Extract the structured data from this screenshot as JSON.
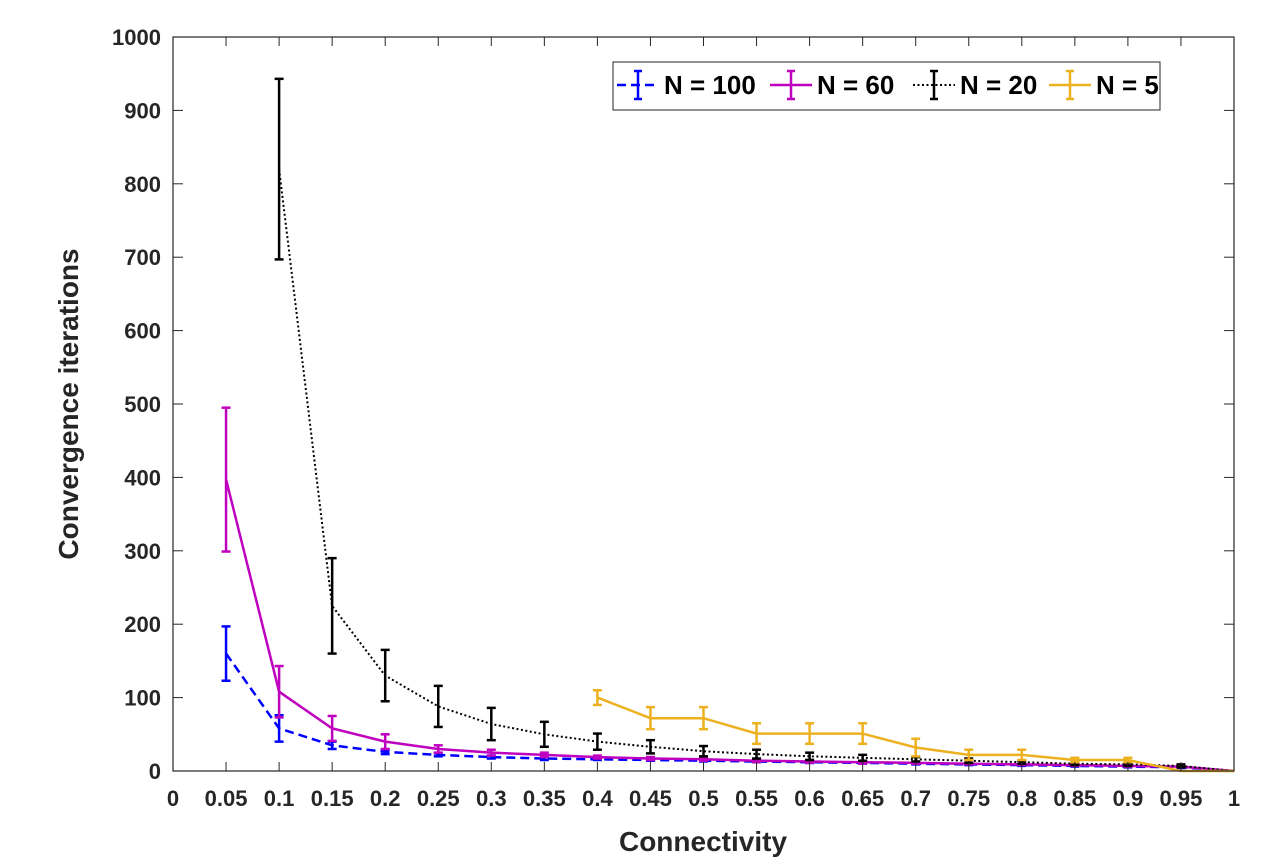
{
  "chart_data": {
    "type": "line",
    "title": "",
    "xlabel": "Connectivity",
    "ylabel": "Convergence iterations",
    "xlim": [
      0,
      1
    ],
    "ylim": [
      0,
      1000
    ],
    "x_ticks": [
      "0",
      "0.05",
      "0.1",
      "0.15",
      "0.2",
      "0.25",
      "0.3",
      "0.35",
      "0.4",
      "0.45",
      "0.5",
      "0.55",
      "0.6",
      "0.65",
      "0.7",
      "0.75",
      "0.8",
      "0.85",
      "0.9",
      "0.95",
      "1"
    ],
    "y_ticks": [
      "0",
      "100",
      "200",
      "300",
      "400",
      "500",
      "600",
      "700",
      "800",
      "900",
      "1000"
    ],
    "grid": false,
    "legend_placement": "top-right",
    "series": [
      {
        "name": "N = 100",
        "color": "#0000ff",
        "line_style": "dashed",
        "x": [
          0.05,
          0.1,
          0.15,
          0.2,
          0.25,
          0.3,
          0.35,
          0.4,
          0.45,
          0.5,
          0.55,
          0.6,
          0.65,
          0.7,
          0.75,
          0.8,
          0.85,
          0.9,
          0.95,
          1.0
        ],
        "y": [
          160,
          58,
          35,
          26,
          22,
          19,
          17,
          16,
          15,
          14,
          13,
          12,
          11,
          10,
          9,
          8,
          7,
          6,
          5,
          0
        ],
        "err": [
          37,
          18,
          5,
          3,
          2,
          2,
          2,
          1,
          1,
          1,
          1,
          1,
          1,
          1,
          1,
          1,
          1,
          1,
          1,
          0
        ]
      },
      {
        "name": "N = 60",
        "color": "#bf00bf",
        "line_style": "solid",
        "x": [
          0.05,
          0.1,
          0.15,
          0.2,
          0.25,
          0.3,
          0.35,
          0.4,
          0.45,
          0.5,
          0.55,
          0.6,
          0.65,
          0.7,
          0.75,
          0.8,
          0.85,
          0.9,
          0.95,
          1.0
        ],
        "y": [
          397,
          108,
          58,
          40,
          30,
          25,
          22,
          19,
          17,
          16,
          14,
          13,
          12,
          11,
          10,
          9,
          8,
          7,
          6,
          0
        ],
        "err": [
          98,
          35,
          17,
          10,
          5,
          4,
          3,
          2,
          2,
          2,
          2,
          2,
          2,
          1,
          1,
          1,
          1,
          1,
          1,
          0
        ]
      },
      {
        "name": "N = 20",
        "color": "#000000",
        "line_style": "dotted",
        "x": [
          0.1,
          0.15,
          0.2,
          0.25,
          0.3,
          0.35,
          0.4,
          0.45,
          0.5,
          0.55,
          0.6,
          0.65,
          0.7,
          0.75,
          0.8,
          0.85,
          0.9,
          0.95,
          1.0
        ],
        "y": [
          820,
          225,
          130,
          88,
          64,
          50,
          40,
          33,
          27,
          23,
          20,
          18,
          16,
          14,
          12,
          10,
          9,
          7,
          0
        ],
        "err": [
          123,
          65,
          35,
          28,
          22,
          17,
          11,
          9,
          7,
          6,
          5,
          4,
          3,
          3,
          2,
          2,
          2,
          2,
          0
        ]
      },
      {
        "name": "N = 5",
        "color": "#edb120",
        "line_style": "solid",
        "x": [
          0.4,
          0.45,
          0.5,
          0.55,
          0.6,
          0.65,
          0.7,
          0.75,
          0.8,
          0.85,
          0.9,
          0.95,
          1.0
        ],
        "y": [
          100,
          72,
          72,
          51,
          51,
          51,
          32,
          22,
          22,
          15,
          15,
          0,
          0
        ],
        "err": [
          10,
          15,
          15,
          14,
          14,
          14,
          12,
          7,
          7,
          3,
          3,
          0,
          0
        ]
      }
    ]
  }
}
